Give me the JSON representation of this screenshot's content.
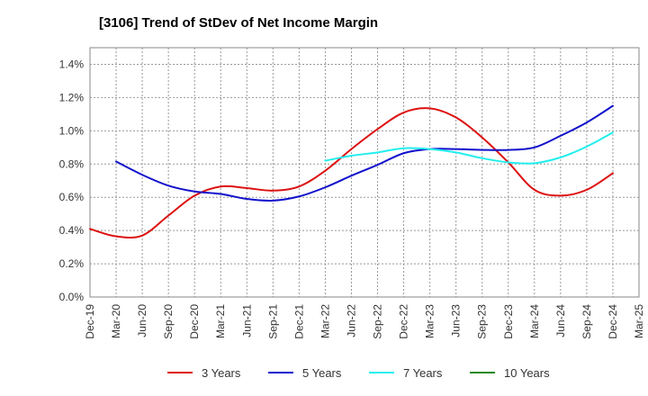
{
  "chart_data": {
    "type": "line",
    "title": "[3106]  Trend of StDev of Net Income Margin",
    "xlabel": "",
    "ylabel": "",
    "ylim": [
      0,
      1.5
    ],
    "y_ticks": [
      0.0,
      0.2,
      0.4,
      0.6,
      0.8,
      1.0,
      1.2,
      1.4
    ],
    "y_tick_labels": [
      "0.0%",
      "0.2%",
      "0.4%",
      "0.6%",
      "0.8%",
      "1.0%",
      "1.2%",
      "1.4%"
    ],
    "x_ticks": [
      "Dec-19",
      "Mar-20",
      "Jun-20",
      "Sep-20",
      "Dec-20",
      "Mar-21",
      "Jun-21",
      "Sep-21",
      "Dec-21",
      "Mar-22",
      "Jun-22",
      "Sep-22",
      "Dec-22",
      "Mar-23",
      "Jun-23",
      "Sep-23",
      "Dec-23",
      "Mar-24",
      "Jun-24",
      "Sep-24",
      "Dec-24",
      "Mar-25"
    ],
    "grid": true,
    "legend_position": "bottom",
    "series": [
      {
        "name": "3 Years",
        "color": "#dd1111",
        "points": [
          [
            "Dec-19",
            0.41
          ],
          [
            "Mar-20",
            0.365
          ],
          [
            "Jun-20",
            0.37
          ],
          [
            "Sep-20",
            0.49
          ],
          [
            "Dec-20",
            0.61
          ],
          [
            "Mar-21",
            0.665
          ],
          [
            "Jun-21",
            0.655
          ],
          [
            "Sep-21",
            0.64
          ],
          [
            "Dec-21",
            0.665
          ],
          [
            "Mar-22",
            0.76
          ],
          [
            "Jun-22",
            0.89
          ],
          [
            "Sep-22",
            1.01
          ],
          [
            "Dec-22",
            1.11
          ],
          [
            "Mar-23",
            1.135
          ],
          [
            "Jun-23",
            1.08
          ],
          [
            "Sep-23",
            0.96
          ],
          [
            "Dec-23",
            0.81
          ],
          [
            "Mar-24",
            0.645
          ],
          [
            "Jun-24",
            0.61
          ],
          [
            "Sep-24",
            0.645
          ],
          [
            "Dec-24",
            0.745
          ]
        ]
      },
      {
        "name": "5 Years",
        "color": "#1111cc",
        "points": [
          [
            "Mar-20",
            0.815
          ],
          [
            "Jun-20",
            0.735
          ],
          [
            "Sep-20",
            0.67
          ],
          [
            "Dec-20",
            0.635
          ],
          [
            "Mar-21",
            0.62
          ],
          [
            "Jun-21",
            0.59
          ],
          [
            "Sep-21",
            0.58
          ],
          [
            "Dec-21",
            0.605
          ],
          [
            "Mar-22",
            0.66
          ],
          [
            "Jun-22",
            0.73
          ],
          [
            "Sep-22",
            0.795
          ],
          [
            "Dec-22",
            0.865
          ],
          [
            "Mar-23",
            0.89
          ],
          [
            "Jun-23",
            0.89
          ],
          [
            "Sep-23",
            0.885
          ],
          [
            "Dec-23",
            0.885
          ],
          [
            "Mar-24",
            0.9
          ],
          [
            "Jun-24",
            0.97
          ],
          [
            "Sep-24",
            1.05
          ],
          [
            "Dec-24",
            1.15
          ]
        ]
      },
      {
        "name": "7 Years",
        "color": "#22eeee",
        "points": [
          [
            "Mar-22",
            0.82
          ],
          [
            "Jun-22",
            0.85
          ],
          [
            "Sep-22",
            0.87
          ],
          [
            "Dec-22",
            0.895
          ],
          [
            "Mar-23",
            0.89
          ],
          [
            "Jun-23",
            0.87
          ],
          [
            "Sep-23",
            0.835
          ],
          [
            "Dec-23",
            0.81
          ],
          [
            "Mar-24",
            0.805
          ],
          [
            "Jun-24",
            0.84
          ],
          [
            "Sep-24",
            0.905
          ],
          [
            "Dec-24",
            0.99
          ]
        ]
      },
      {
        "name": "10 Years",
        "color": "#228822",
        "points": []
      }
    ]
  }
}
